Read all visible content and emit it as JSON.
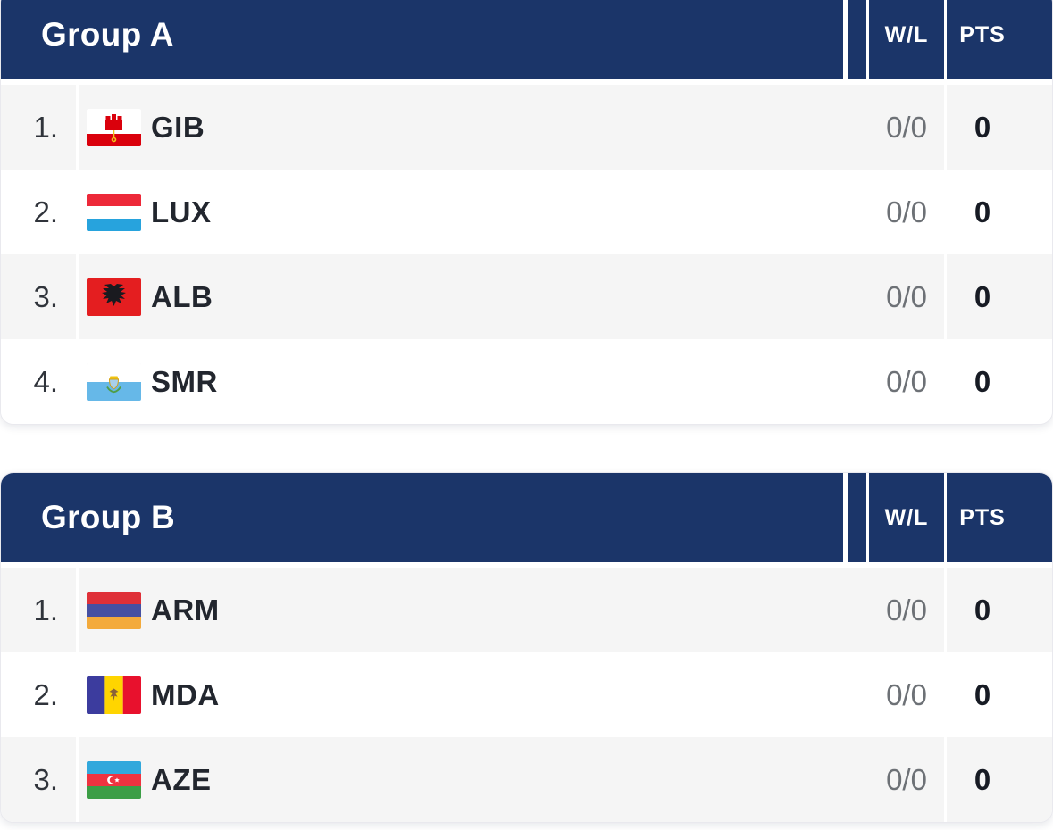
{
  "columns": {
    "wl_label": "W/L",
    "pts_label": "PTS"
  },
  "groups": [
    {
      "title": "Group A",
      "rows": [
        {
          "rank": "1.",
          "code": "GIB",
          "flag": "gibraltar-flag",
          "wl": "0/0",
          "pts": "0"
        },
        {
          "rank": "2.",
          "code": "LUX",
          "flag": "luxembourg-flag",
          "wl": "0/0",
          "pts": "0"
        },
        {
          "rank": "3.",
          "code": "ALB",
          "flag": "albania-flag",
          "wl": "0/0",
          "pts": "0"
        },
        {
          "rank": "4.",
          "code": "SMR",
          "flag": "san-marino-flag",
          "wl": "0/0",
          "pts": "0"
        }
      ]
    },
    {
      "title": "Group B",
      "rows": [
        {
          "rank": "1.",
          "code": "ARM",
          "flag": "armenia-flag",
          "wl": "0/0",
          "pts": "0"
        },
        {
          "rank": "2.",
          "code": "MDA",
          "flag": "moldova-flag",
          "wl": "0/0",
          "pts": "0"
        },
        {
          "rank": "3.",
          "code": "AZE",
          "flag": "azerbaijan-flag",
          "wl": "0/0",
          "pts": "0"
        }
      ]
    }
  ],
  "colors": {
    "header_bg": "#1b3569",
    "header_text": "#ffffff",
    "row_alt_bg": "#f5f5f5",
    "row_bg": "#ffffff",
    "rank_text": "#30343b",
    "code_text": "#22262e",
    "wl_text": "#6d7176",
    "pts_text": "#171b24"
  }
}
